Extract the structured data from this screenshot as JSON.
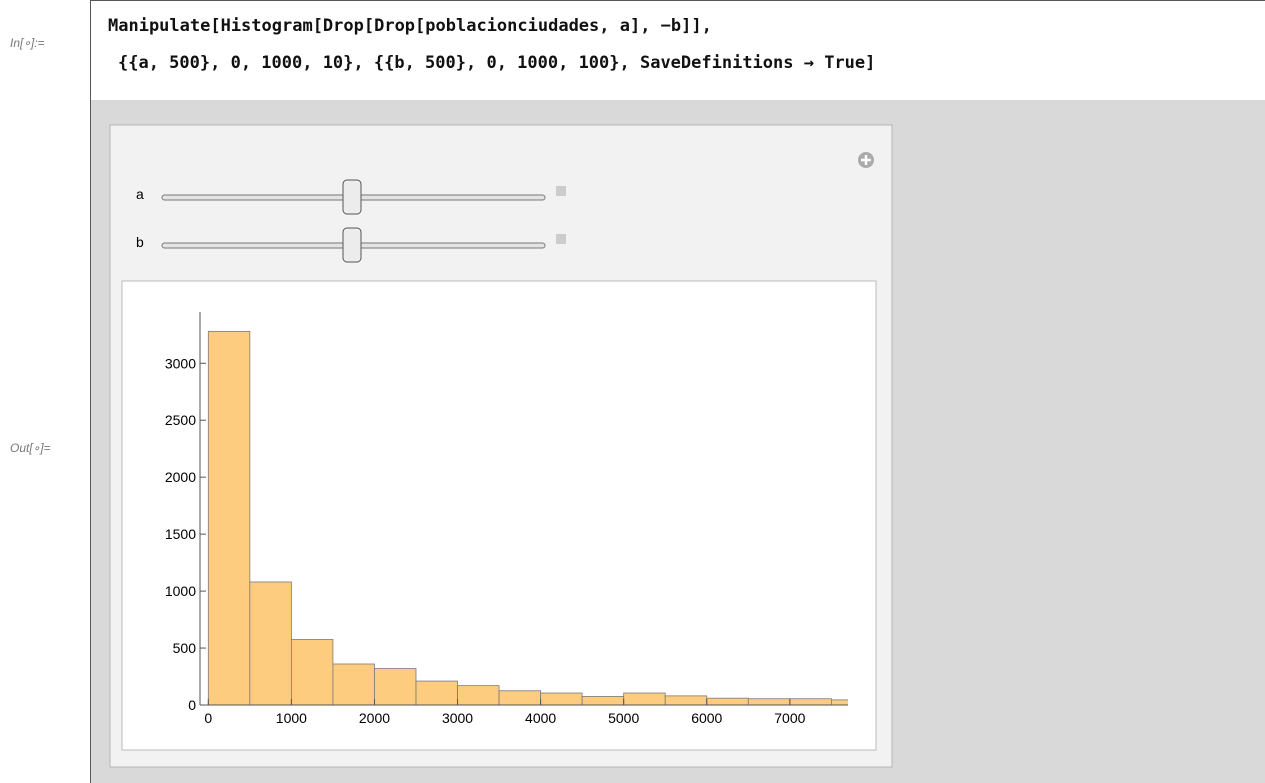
{
  "cell": {
    "in_label": "In[∘]:=",
    "out_label": "Out[∘]=",
    "code": [
      "Manipulate[Histogram[Drop[Drop[poblacionciudades, a], −b]],",
      "{{a, 500}, 0, 1000, 10}, {{b, 500}, 0, 1000, 100}, SaveDefinitions → True]"
    ]
  },
  "controls": [
    "a",
    "b"
  ],
  "chart_data": {
    "type": "histogram",
    "bins": [
      0,
      500,
      1000,
      1500,
      2000,
      2500,
      3000,
      3500,
      4000,
      4500,
      5000,
      5500,
      6000,
      6500,
      7000,
      7500,
      8000
    ],
    "values": [
      3280,
      1080,
      575,
      360,
      320,
      210,
      170,
      125,
      105,
      75,
      105,
      80,
      60,
      55,
      55,
      45
    ],
    "color": "#fdcc7f",
    "xlim": [
      -100,
      7700
    ],
    "xticks": [
      0,
      1000,
      2000,
      3000,
      4000,
      5000,
      6000,
      7000
    ],
    "ylim": [
      0,
      3450
    ],
    "yticks": [
      0,
      500,
      1000,
      1500,
      2000,
      2500,
      3000
    ]
  }
}
